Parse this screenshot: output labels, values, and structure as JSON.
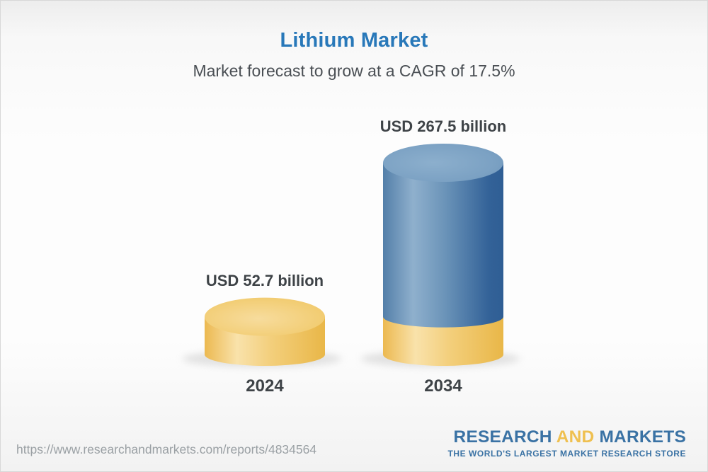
{
  "page": {
    "title": "Lithium Market",
    "subtitle": "Market forecast to grow at a CAGR of 17.5%"
  },
  "chart_data": {
    "type": "bar",
    "variant": "3d-cylinder",
    "title": "Lithium Market",
    "subtitle": "Market forecast to grow at a CAGR of 17.5%",
    "unit": "USD billion",
    "categories": [
      "2024",
      "2034"
    ],
    "values": [
      52.7,
      267.5
    ],
    "value_labels": [
      "USD 52.7 billion",
      "USD 267.5 billion"
    ],
    "cagr_percent": 17.5,
    "ylim": [
      0,
      267.5
    ],
    "grid": false,
    "legend": false,
    "note": "2034 cylinder shows the 2024 value as a yellow base segment under the blue segment",
    "colors": {
      "bar_2024": "#F0C25C",
      "bar_2034": "#4678A8",
      "label_text": "#3E4347",
      "title_text": "#2878B9"
    }
  },
  "footer": {
    "url": "https://www.researchandmarkets.com/reports/4834564",
    "logo": {
      "part1": "RESEARCH",
      "part2": "AND",
      "part3": "MARKETS",
      "tagline": "THE WORLD'S LARGEST MARKET RESEARCH STORE",
      "brand_blue": "#3A72A4",
      "brand_yellow": "#EFC050"
    }
  }
}
